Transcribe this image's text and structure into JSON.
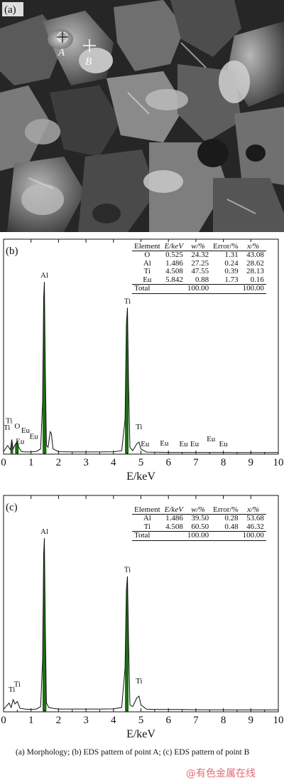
{
  "sem": {
    "panel_label": "(a)",
    "point_a_label": "A",
    "point_b_label": "B"
  },
  "caption": {
    "text": "(a) Morphology; (b) EDS pattern of point A; (c) EDS pattern of point B"
  },
  "watermark": {
    "text": "@有色金属在线"
  },
  "colors": {
    "peak_fill": "#1e6e14",
    "spectrum_line": "#111111",
    "axis": "#111111"
  },
  "chart_data": [
    {
      "type": "area",
      "panel_label": "(b)",
      "xlabel": "E/keV",
      "ylabel": "",
      "xlim": [
        0,
        10
      ],
      "xticks": [
        0,
        1,
        2,
        3,
        4,
        5,
        6,
        7,
        8,
        9,
        10
      ],
      "ylim": [
        0,
        1
      ],
      "series": [
        {
          "points": [
            [
              0,
              0.015
            ],
            [
              0.15,
              0.05
            ],
            [
              0.25,
              0.025
            ],
            [
              0.3,
              0.085
            ],
            [
              0.35,
              0.03
            ],
            [
              0.42,
              0.055
            ],
            [
              0.5,
              0.075
            ],
            [
              0.55,
              0.04
            ],
            [
              0.65,
              0.015
            ],
            [
              0.8,
              0.013
            ],
            [
              1.0,
              0.013
            ],
            [
              1.2,
              0.016
            ],
            [
              1.35,
              0.03
            ],
            [
              1.42,
              0.3
            ],
            [
              1.46,
              0.9
            ],
            [
              1.486,
              1.0
            ],
            [
              1.52,
              0.5
            ],
            [
              1.56,
              0.05
            ],
            [
              1.62,
              0.04
            ],
            [
              1.7,
              0.13
            ],
            [
              1.74,
              0.12
            ],
            [
              1.8,
              0.03
            ],
            [
              2.0,
              0.014
            ],
            [
              2.5,
              0.013
            ],
            [
              3.0,
              0.013
            ],
            [
              3.5,
              0.013
            ],
            [
              4.0,
              0.014
            ],
            [
              4.3,
              0.02
            ],
            [
              4.42,
              0.2
            ],
            [
              4.47,
              0.75
            ],
            [
              4.508,
              0.85
            ],
            [
              4.55,
              0.4
            ],
            [
              4.6,
              0.04
            ],
            [
              4.7,
              0.02
            ],
            [
              4.85,
              0.06
            ],
            [
              4.93,
              0.07
            ],
            [
              5.0,
              0.03
            ],
            [
              5.2,
              0.012
            ],
            [
              5.5,
              0.011
            ],
            [
              6.0,
              0.01
            ],
            [
              6.5,
              0.01
            ],
            [
              7.0,
              0.01
            ],
            [
              7.5,
              0.01
            ],
            [
              8.0,
              0.01
            ],
            [
              8.5,
              0.009
            ],
            [
              9.0,
              0.009
            ],
            [
              9.5,
              0.009
            ],
            [
              10.0,
              0.01
            ]
          ]
        }
      ],
      "peaks": [
        [
          0.29,
          0.085
        ],
        [
          0.5,
          0.075
        ],
        [
          1.486,
          1.0
        ],
        [
          4.508,
          0.85
        ]
      ],
      "annotations": [
        {
          "text": "Al",
          "x": 1.486,
          "y": 1.0
        },
        {
          "text": "Ti",
          "x": 4.508,
          "y": 0.85
        },
        {
          "text": "Ti",
          "x": 0.2,
          "y": 0.155
        },
        {
          "text": "Ti",
          "x": 0.12,
          "y": 0.115
        },
        {
          "text": "O",
          "x": 0.5,
          "y": 0.125
        },
        {
          "text": "Eu",
          "x": 0.8,
          "y": 0.1
        },
        {
          "text": "Eu",
          "x": 1.1,
          "y": 0.065
        },
        {
          "text": "Eu",
          "x": 0.6,
          "y": 0.035
        },
        {
          "text": "Ti",
          "x": 4.93,
          "y": 0.12
        },
        {
          "text": "Eu",
          "x": 5.15,
          "y": 0.02
        },
        {
          "text": "Eu",
          "x": 5.85,
          "y": 0.025
        },
        {
          "text": "Eu",
          "x": 6.55,
          "y": 0.02
        },
        {
          "text": "Eu",
          "x": 6.95,
          "y": 0.02
        },
        {
          "text": "Eu",
          "x": 7.55,
          "y": 0.05
        },
        {
          "text": "Eu",
          "x": 8.0,
          "y": 0.02
        }
      ],
      "table": {
        "columns": [
          "Element",
          "E/keV",
          "w/%",
          "Error/%",
          "x/%"
        ],
        "rows": [
          [
            "O",
            "0.525",
            "24.32",
            "1.31",
            "43.08"
          ],
          [
            "Al",
            "1.486",
            "27.25",
            "0.24",
            "28.62"
          ],
          [
            "Ti",
            "4.508",
            "47.55",
            "0.39",
            "28.13"
          ],
          [
            "Eu",
            "5.842",
            "0.88",
            "1.73",
            "0.16"
          ]
        ],
        "total": [
          "Total",
          "",
          "100.00",
          "",
          "100.00"
        ]
      }
    },
    {
      "type": "area",
      "panel_label": "(c)",
      "xlabel": "E/keV",
      "ylabel": "",
      "xlim": [
        0,
        10
      ],
      "xticks": [
        0,
        1,
        2,
        3,
        4,
        5,
        6,
        7,
        8,
        9,
        10
      ],
      "ylim": [
        0,
        1
      ],
      "series": [
        {
          "points": [
            [
              0,
              0.015
            ],
            [
              0.2,
              0.05
            ],
            [
              0.28,
              0.025
            ],
            [
              0.35,
              0.07
            ],
            [
              0.42,
              0.045
            ],
            [
              0.5,
              0.06
            ],
            [
              0.6,
              0.02
            ],
            [
              0.8,
              0.015
            ],
            [
              1.0,
              0.014
            ],
            [
              1.2,
              0.016
            ],
            [
              1.35,
              0.03
            ],
            [
              1.42,
              0.3
            ],
            [
              1.46,
              0.9
            ],
            [
              1.486,
              1.0
            ],
            [
              1.52,
              0.5
            ],
            [
              1.56,
              0.05
            ],
            [
              1.65,
              0.025
            ],
            [
              1.8,
              0.02
            ],
            [
              2.0,
              0.016
            ],
            [
              2.5,
              0.016
            ],
            [
              3.0,
              0.016
            ],
            [
              3.5,
              0.016
            ],
            [
              4.0,
              0.017
            ],
            [
              4.3,
              0.025
            ],
            [
              4.42,
              0.25
            ],
            [
              4.47,
              0.7
            ],
            [
              4.508,
              0.78
            ],
            [
              4.55,
              0.4
            ],
            [
              4.6,
              0.04
            ],
            [
              4.7,
              0.03
            ],
            [
              4.85,
              0.08
            ],
            [
              4.93,
              0.09
            ],
            [
              5.0,
              0.04
            ],
            [
              5.2,
              0.015
            ],
            [
              5.5,
              0.014
            ],
            [
              6.0,
              0.013
            ],
            [
              6.5,
              0.013
            ],
            [
              7.0,
              0.012
            ],
            [
              7.5,
              0.012
            ],
            [
              8.0,
              0.012
            ],
            [
              8.5,
              0.011
            ],
            [
              9.0,
              0.011
            ],
            [
              9.5,
              0.011
            ],
            [
              10.0,
              0.012
            ]
          ]
        }
      ],
      "peaks": [
        [
          1.486,
          1.0
        ],
        [
          4.508,
          0.78
        ]
      ],
      "annotations": [
        {
          "text": "Al",
          "x": 1.486,
          "y": 1.0
        },
        {
          "text": "Ti",
          "x": 4.508,
          "y": 0.78
        },
        {
          "text": "Ti",
          "x": 0.5,
          "y": 0.12
        },
        {
          "text": "Ti",
          "x": 0.3,
          "y": 0.09
        },
        {
          "text": "Ti",
          "x": 4.93,
          "y": 0.14
        }
      ],
      "table": {
        "columns": [
          "Element",
          "E/keV",
          "w/%",
          "Error/%",
          "x/%"
        ],
        "rows": [
          [
            "Al",
            "1.486",
            "39.50",
            "0.28",
            "53.68"
          ],
          [
            "Ti",
            "4.508",
            "60.50",
            "0.48",
            "46.32"
          ]
        ],
        "total": [
          "Total",
          "",
          "100.00",
          "",
          "100.00"
        ]
      }
    }
  ]
}
